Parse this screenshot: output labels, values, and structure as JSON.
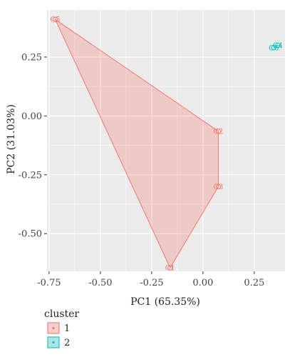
{
  "chart_data": {
    "type": "scatter",
    "title": "",
    "xlabel": "PC1 (65.35%)",
    "ylabel": "PC2 (31.03%)",
    "xlim": [
      -0.76,
      0.4
    ],
    "ylim": [
      -0.66,
      0.45
    ],
    "x_ticks": [
      -0.75,
      -0.5,
      -0.25,
      0.0,
      0.25
    ],
    "x_tick_labels": [
      "-0.75",
      "-0.50",
      "-0.25",
      "0.00",
      "0.25"
    ],
    "y_ticks": [
      0.25,
      0.0,
      -0.25,
      -0.5
    ],
    "y_tick_labels": [
      "0.25",
      "0.00",
      "-0.25",
      "-0.50"
    ],
    "grid": true,
    "legend": {
      "title": "cluster",
      "position": "bottom-left",
      "entries": [
        {
          "label": "1",
          "cluster": 1
        },
        {
          "label": "2",
          "cluster": 2
        }
      ]
    },
    "colors": {
      "cluster1": "#F8766D",
      "cluster1_fill": "#F8766D",
      "cluster2": "#00BFC4",
      "cluster2_fill": "#00BFC4",
      "panel": "#EBEBEB",
      "grid": "#FFFFFF"
    },
    "points": [
      {
        "label": "C5",
        "x": -0.72,
        "y": 0.41,
        "cluster": 1
      },
      {
        "label": "C2",
        "x": 0.075,
        "y": -0.065,
        "cluster": 1
      },
      {
        "label": "C3",
        "x": 0.075,
        "y": -0.3,
        "cluster": 1
      },
      {
        "label": "C1",
        "x": -0.16,
        "y": -0.645,
        "cluster": 1
      },
      {
        "label": "C4",
        "x": 0.365,
        "y": 0.3,
        "cluster": 2
      },
      {
        "label": "C6",
        "x": 0.345,
        "y": 0.29,
        "cluster": 2
      }
    ],
    "hulls": [
      {
        "cluster": 1,
        "vertices": [
          "C5",
          "C2",
          "C3",
          "C1"
        ]
      },
      {
        "cluster": 2,
        "vertices": [
          "C4",
          "C6"
        ]
      }
    ]
  }
}
